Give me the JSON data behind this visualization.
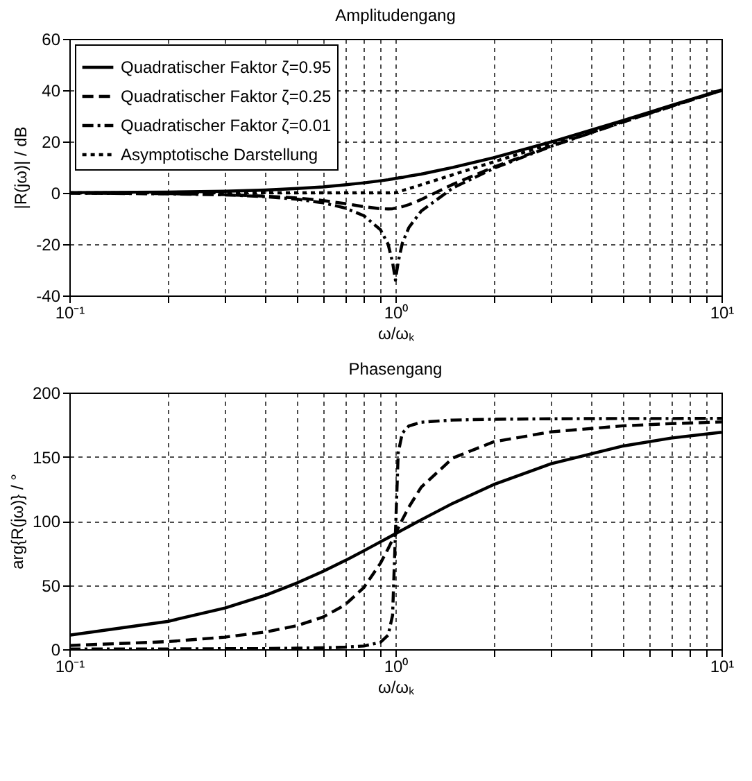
{
  "chart_data": [
    {
      "type": "line",
      "title": "Amplitudengang",
      "xlabel": "ω/ωₖ",
      "ylabel": "|R(jω)| / dB",
      "log": "x",
      "grid": true,
      "legend": "top left",
      "x": [
        0.1,
        0.2,
        0.3,
        0.4,
        0.5,
        0.6,
        0.7,
        0.8,
        0.9,
        0.95,
        0.98,
        1,
        1.02,
        1.05,
        1.1,
        1.2,
        1.5,
        2,
        3,
        5,
        7,
        10
      ],
      "xlim": [
        0.1,
        10
      ],
      "xticks": [
        {
          "value": 0.1,
          "label": "10⁻¹"
        },
        {
          "value": 0.2,
          "label": null
        },
        {
          "value": 0.3,
          "label": null
        },
        {
          "value": 0.4,
          "label": null
        },
        {
          "value": 0.5,
          "label": null
        },
        {
          "value": 0.6,
          "label": null
        },
        {
          "value": 0.7,
          "label": null
        },
        {
          "value": 0.8,
          "label": null
        },
        {
          "value": 0.9,
          "label": null
        },
        {
          "value": 1,
          "label": "10⁰"
        },
        {
          "value": 2,
          "label": null
        },
        {
          "value": 3,
          "label": null
        },
        {
          "value": 4,
          "label": null
        },
        {
          "value": 5,
          "label": null
        },
        {
          "value": 6,
          "label": null
        },
        {
          "value": 7,
          "label": null
        },
        {
          "value": 8,
          "label": null
        },
        {
          "value": 9,
          "label": null
        },
        {
          "value": 10,
          "label": "10¹"
        }
      ],
      "ylim": [
        -40,
        60
      ],
      "yticks": [
        -40,
        -20,
        0,
        20,
        40,
        60
      ],
      "series": [
        {
          "name": "Quadratischer Faktor ζ=0.95",
          "color": "#000000",
          "line_style": "solid",
          "values": [
            0.1,
            0.3,
            0.6,
            1.1,
            1.7,
            2.3,
            3.1,
            3.9,
            4.7,
            5.1,
            5.4,
            5.6,
            5.8,
            6.0,
            6.5,
            7.3,
            9.9,
            13.7,
            19.8,
            28.2,
            34.0,
            40.1
          ]
        },
        {
          "name": "Quadratischer Faktor ζ=0.25",
          "color": "#000000",
          "line_style": "dashed",
          "values": [
            -0.1,
            -0.3,
            -0.7,
            -1.3,
            -2.0,
            -3.0,
            -4.2,
            -5.4,
            -6.2,
            -6.3,
            -6.2,
            -6.0,
            -5.8,
            -5.4,
            -4.6,
            -2.6,
            3.3,
            10.0,
            18.2,
            27.7,
            33.7,
            39.9
          ]
        },
        {
          "name": "Quadratischer Faktor ζ=0.01",
          "color": "#000000",
          "line_style": "dashdot",
          "values": [
            -0.1,
            -0.4,
            -0.8,
            -1.5,
            -2.5,
            -3.9,
            -5.9,
            -8.9,
            -14.4,
            -20.1,
            -27.1,
            -34.0,
            -26.9,
            -19.6,
            -13.5,
            -7.1,
            1.9,
            9.5,
            18.1,
            27.6,
            33.6,
            39.9
          ]
        },
        {
          "name": "Asymptotische Darstellung",
          "color": "#000000",
          "line_style": "dotted",
          "x": [
            0.1,
            1,
            10
          ],
          "values": [
            0,
            0,
            40
          ]
        }
      ]
    },
    {
      "type": "line",
      "title": "Phasengang",
      "xlabel": "ω/ωₖ",
      "ylabel": "arg{R(jω)} / °",
      "log": "x",
      "grid": true,
      "x": [
        0.1,
        0.2,
        0.3,
        0.4,
        0.5,
        0.6,
        0.7,
        0.8,
        0.9,
        0.95,
        0.98,
        1,
        1.02,
        1.05,
        1.1,
        1.2,
        1.5,
        2,
        3,
        5,
        7,
        10
      ],
      "xlim": [
        0.1,
        10
      ],
      "xticks": [
        {
          "value": 0.1,
          "label": "10⁻¹"
        },
        {
          "value": 0.2,
          "label": null
        },
        {
          "value": 0.3,
          "label": null
        },
        {
          "value": 0.4,
          "label": null
        },
        {
          "value": 0.5,
          "label": null
        },
        {
          "value": 0.6,
          "label": null
        },
        {
          "value": 0.7,
          "label": null
        },
        {
          "value": 0.8,
          "label": null
        },
        {
          "value": 0.9,
          "label": null
        },
        {
          "value": 1,
          "label": "10⁰"
        },
        {
          "value": 2,
          "label": null
        },
        {
          "value": 3,
          "label": null
        },
        {
          "value": 4,
          "label": null
        },
        {
          "value": 5,
          "label": null
        },
        {
          "value": 6,
          "label": null
        },
        {
          "value": 7,
          "label": null
        },
        {
          "value": 8,
          "label": null
        },
        {
          "value": 9,
          "label": null
        },
        {
          "value": 10,
          "label": "10¹"
        }
      ],
      "ylim": [
        0,
        200
      ],
      "yticks": [
        0,
        50,
        100,
        150,
        200
      ],
      "series": [
        {
          "color": "#000000",
          "line_style": "solid",
          "values": [
            10.9,
            21.6,
            32.1,
            42.1,
            51.7,
            60.7,
            69.0,
            76.7,
            83.7,
            86.9,
            88.8,
            90,
            91.2,
            92.9,
            95.7,
            100.9,
            113.7,
            128.3,
            144.5,
            158.4,
            164.5,
            169.1
          ]
        },
        {
          "color": "#000000",
          "line_style": "dashed",
          "values": [
            2.9,
            5.9,
            9.4,
            13.4,
            18.4,
            25.1,
            34.5,
            48.0,
            67.1,
            78.4,
            85.4,
            90,
            94.5,
            101.0,
            110.9,
            126.3,
            149.0,
            161.6,
            169.4,
            174.1,
            175.8,
            177.1
          ]
        },
        {
          "color": "#000000",
          "line_style": "dashdot",
          "values": [
            0.1,
            0.2,
            0.4,
            0.5,
            0.8,
            1.1,
            1.6,
            2.5,
            5.4,
            11.0,
            26.3,
            90,
            153.2,
            168.4,
            174.0,
            176.9,
            178.6,
            179.2,
            179.6,
            179.8,
            179.8,
            179.9
          ]
        }
      ]
    }
  ]
}
